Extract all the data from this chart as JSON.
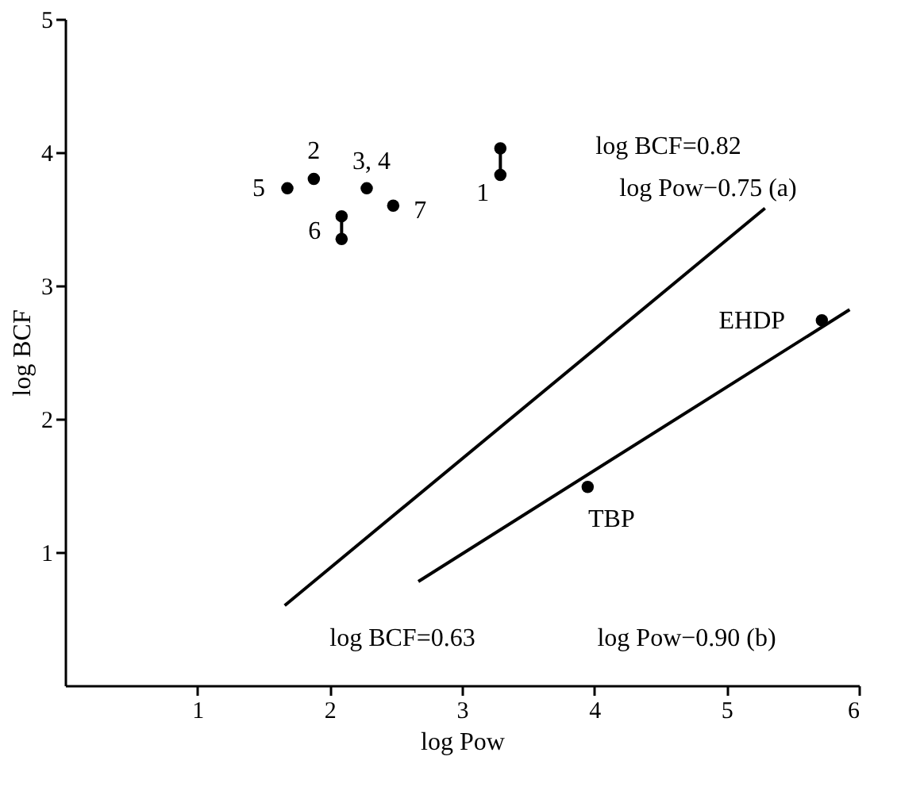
{
  "chart_data": {
    "type": "scatter",
    "xlabel": "log Pow",
    "ylabel": "log BCF",
    "xlim": [
      0,
      6
    ],
    "ylim": [
      0,
      5
    ],
    "xticks": [
      1,
      2,
      3,
      4,
      5,
      6
    ],
    "yticks": [
      1,
      2,
      3,
      4,
      5
    ],
    "marker": "circle",
    "series": [
      {
        "color": "#000000",
        "x": [
          1.68,
          1.88,
          2.28,
          2.48,
          2.09,
          2.09,
          3.29,
          3.29,
          5.72,
          3.95
        ],
        "values": [
          3.73,
          3.8,
          3.73,
          3.6,
          3.52,
          3.35,
          4.03,
          3.83,
          2.74,
          1.49
        ]
      },
      {
        "type": "line",
        "marker": "none",
        "line_style": "solid",
        "color": "#000000",
        "x": [
          2.09,
          2.09
        ],
        "values": [
          3.35,
          3.52
        ]
      },
      {
        "type": "line",
        "marker": "none",
        "line_style": "solid",
        "color": "#000000",
        "x": [
          3.29,
          3.29
        ],
        "values": [
          3.83,
          4.03
        ]
      },
      {
        "type": "line",
        "marker": "none",
        "line_style": "solid",
        "color": "#000000",
        "x": [
          1.66,
          5.29
        ],
        "values": [
          0.6,
          3.58
        ]
      },
      {
        "type": "line",
        "marker": "none",
        "line_style": "solid",
        "color": "#000000",
        "x": [
          2.67,
          5.93
        ],
        "values": [
          0.78,
          2.82
        ]
      }
    ],
    "annotations": [
      {
        "text": "1",
        "x": 3.29,
        "y": 3.83
      },
      {
        "text": "2",
        "x": 1.88,
        "y": 3.8
      },
      {
        "text": "3, 4",
        "x": 2.28,
        "y": 3.73
      },
      {
        "text": "5",
        "x": 1.68,
        "y": 3.73
      },
      {
        "text": "6",
        "x": 2.09,
        "y": 3.35
      },
      {
        "text": "7",
        "x": 2.48,
        "y": 3.6
      },
      {
        "text": "EHDP",
        "x": 5.72,
        "y": 2.74
      },
      {
        "text": "TBP",
        "x": 3.95,
        "y": 1.49
      },
      "log BCF=0.82",
      "log Pow−0.75 (a)",
      "log BCF=0.63",
      "log Pow−0.90 (b)"
    ]
  }
}
